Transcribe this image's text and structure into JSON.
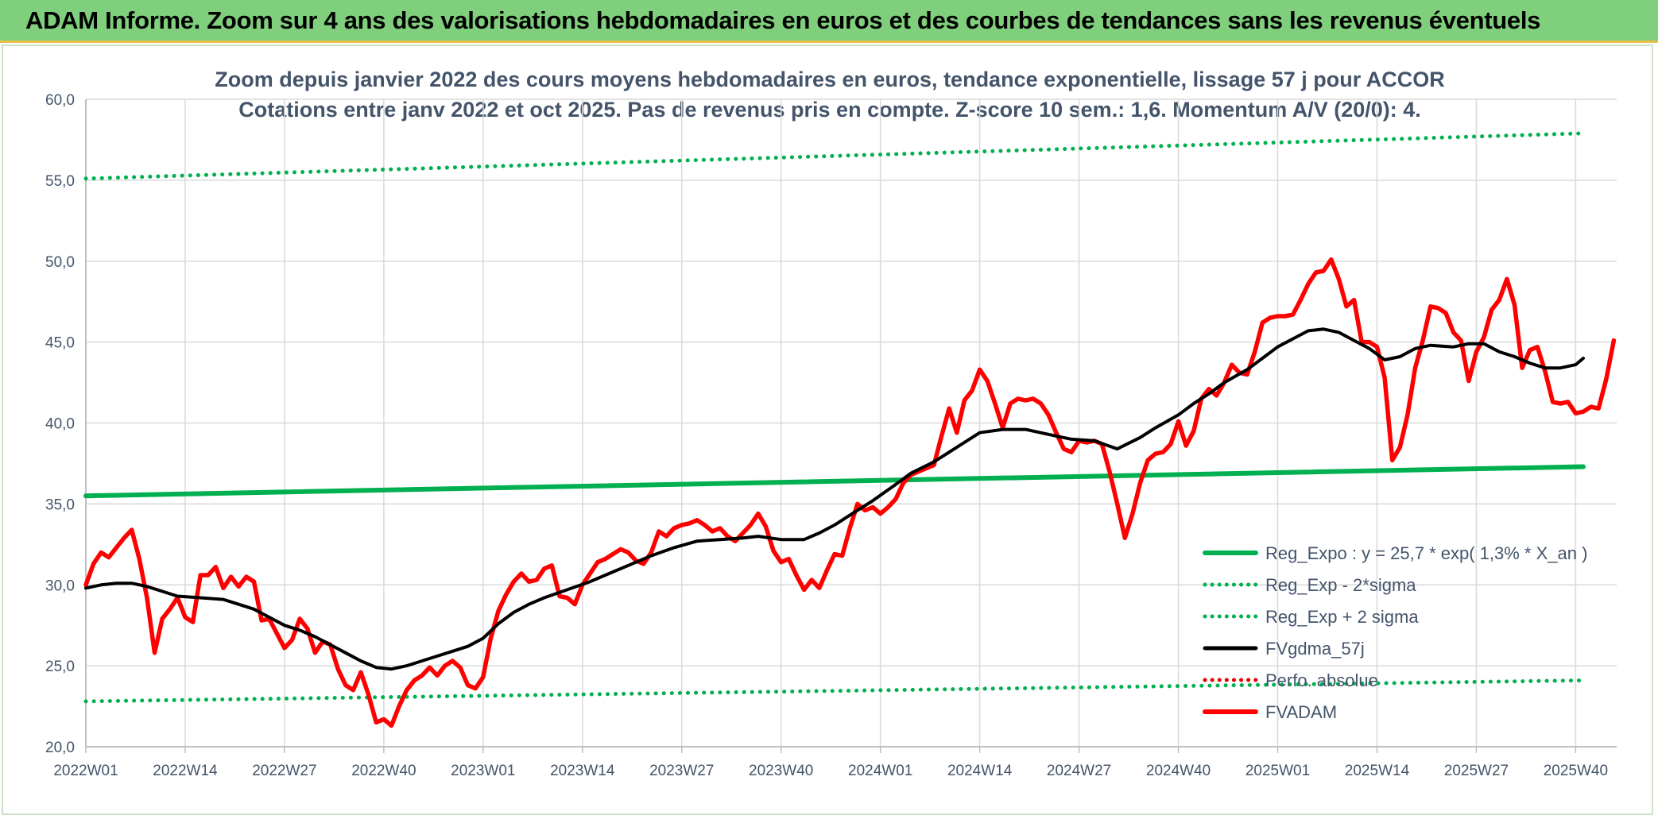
{
  "banner": {
    "title": "ADAM Informe. Zoom sur 4 ans des valorisations hebdomadaires en euros et des courbes de tendances sans les revenus éventuels"
  },
  "chart_data": {
    "type": "line",
    "title": "Zoom depuis janvier 2022 des cours moyens hebdomadaires en euros, tendance exponentielle, lissage 57 j pour ACCOR",
    "subtitle": "Cotations entre janv 2022 et oct 2025. Pas de revenus pris en compte. Z-score 10 sem.: 1,6. Momentum A/V (20/0): 4.",
    "ylim": [
      20,
      60
    ],
    "y_ticks": [
      "20,0",
      "25,0",
      "30,0",
      "35,0",
      "40,0",
      "45,0",
      "50,0",
      "55,0",
      "60,0"
    ],
    "x_range": [
      0,
      196
    ],
    "x_ticks": [
      {
        "label": "2022W01",
        "x": 0
      },
      {
        "label": "2022W14",
        "x": 13
      },
      {
        "label": "2022W27",
        "x": 26
      },
      {
        "label": "2022W40",
        "x": 39
      },
      {
        "label": "2023W01",
        "x": 52
      },
      {
        "label": "2023W14",
        "x": 65
      },
      {
        "label": "2023W27",
        "x": 78
      },
      {
        "label": "2023W40",
        "x": 91
      },
      {
        "label": "2024W01",
        "x": 104
      },
      {
        "label": "2024W14",
        "x": 117
      },
      {
        "label": "2024W27",
        "x": 130
      },
      {
        "label": "2024W40",
        "x": 143
      },
      {
        "label": "2025W01",
        "x": 156
      },
      {
        "label": "2025W14",
        "x": 169
      },
      {
        "label": "2025W27",
        "x": 182
      },
      {
        "label": "2025W40",
        "x": 195
      }
    ],
    "series": [
      {
        "name": "Reg_Expo : y = 25,7 * exp( 1,3% *  X_an )",
        "color": "#00b050",
        "style": "solid",
        "points": [
          [
            0,
            35.5
          ],
          [
            196,
            37.3
          ]
        ]
      },
      {
        "name": "Reg_Exp - 2*sigma",
        "color": "#00b050",
        "style": "dotted",
        "points": [
          [
            0,
            22.8
          ],
          [
            196,
            24.1
          ]
        ]
      },
      {
        "name": "Reg_Exp + 2 sigma",
        "color": "#00b050",
        "style": "dotted",
        "points": [
          [
            0,
            55.1
          ],
          [
            196,
            57.9
          ]
        ]
      },
      {
        "name": "FVgdma_57j",
        "color": "#000000",
        "style": "solid",
        "points": [
          [
            0,
            29.8
          ],
          [
            2,
            30
          ],
          [
            4,
            30.1
          ],
          [
            6,
            30.1
          ],
          [
            8,
            29.9
          ],
          [
            10,
            29.6
          ],
          [
            12,
            29.3
          ],
          [
            15,
            29.2
          ],
          [
            18,
            29.1
          ],
          [
            20,
            28.8
          ],
          [
            22,
            28.5
          ],
          [
            24,
            28
          ],
          [
            26,
            27.5
          ],
          [
            28,
            27.2
          ],
          [
            30,
            26.8
          ],
          [
            32,
            26.3
          ],
          [
            34,
            25.8
          ],
          [
            36,
            25.3
          ],
          [
            38,
            24.9
          ],
          [
            40,
            24.8
          ],
          [
            42,
            25
          ],
          [
            44,
            25.3
          ],
          [
            46,
            25.6
          ],
          [
            48,
            25.9
          ],
          [
            50,
            26.2
          ],
          [
            52,
            26.7
          ],
          [
            54,
            27.6
          ],
          [
            56,
            28.3
          ],
          [
            58,
            28.8
          ],
          [
            60,
            29.2
          ],
          [
            63,
            29.7
          ],
          [
            66,
            30.2
          ],
          [
            68,
            30.6
          ],
          [
            71,
            31.2
          ],
          [
            74,
            31.8
          ],
          [
            77,
            32.3
          ],
          [
            80,
            32.7
          ],
          [
            83,
            32.8
          ],
          [
            86,
            32.9
          ],
          [
            88,
            33
          ],
          [
            91,
            32.8
          ],
          [
            94,
            32.8
          ],
          [
            96,
            33.2
          ],
          [
            98,
            33.7
          ],
          [
            100,
            34.3
          ],
          [
            103,
            35.2
          ],
          [
            106,
            36.2
          ],
          [
            108,
            36.9
          ],
          [
            111,
            37.6
          ],
          [
            114,
            38.5
          ],
          [
            117,
            39.4
          ],
          [
            120,
            39.6
          ],
          [
            123,
            39.6
          ],
          [
            126,
            39.3
          ],
          [
            129,
            39
          ],
          [
            132,
            38.9
          ],
          [
            135,
            38.4
          ],
          [
            138,
            39.1
          ],
          [
            140,
            39.7
          ],
          [
            143,
            40.5
          ],
          [
            145,
            41.2
          ],
          [
            147,
            41.8
          ],
          [
            149,
            42.5
          ],
          [
            152,
            43.3
          ],
          [
            154,
            44
          ],
          [
            156,
            44.7
          ],
          [
            158,
            45.2
          ],
          [
            160,
            45.7
          ],
          [
            162,
            45.8
          ],
          [
            164,
            45.6
          ],
          [
            166,
            45.1
          ],
          [
            168,
            44.6
          ],
          [
            170,
            43.9
          ],
          [
            172,
            44.1
          ],
          [
            174,
            44.6
          ],
          [
            176,
            44.8
          ],
          [
            179,
            44.7
          ],
          [
            181,
            44.9
          ],
          [
            183,
            44.9
          ],
          [
            185,
            44.4
          ],
          [
            187,
            44.1
          ],
          [
            189,
            43.7
          ],
          [
            191,
            43.4
          ],
          [
            193,
            43.4
          ],
          [
            195,
            43.6
          ],
          [
            196,
            44
          ]
        ]
      },
      {
        "name": "Perfo. absolue",
        "color": "#e60000",
        "style": "dotted",
        "points": []
      },
      {
        "name": "FVADAM",
        "color": "#ff0000",
        "style": "solid",
        "points": [
          [
            0,
            30
          ],
          [
            1,
            31.3
          ],
          [
            2,
            32
          ],
          [
            3,
            31.7
          ],
          [
            4,
            32.3
          ],
          [
            5,
            32.9
          ],
          [
            6,
            33.4
          ],
          [
            7,
            31.6
          ],
          [
            8,
            29.2
          ],
          [
            9,
            25.8
          ],
          [
            10,
            27.9
          ],
          [
            11,
            28.5
          ],
          [
            12,
            29.2
          ],
          [
            13,
            28
          ],
          [
            14,
            27.7
          ],
          [
            15,
            30.6
          ],
          [
            16,
            30.6
          ],
          [
            17,
            31.1
          ],
          [
            18,
            29.8
          ],
          [
            19,
            30.5
          ],
          [
            20,
            29.9
          ],
          [
            21,
            30.5
          ],
          [
            22,
            30.2
          ],
          [
            23,
            27.8
          ],
          [
            24,
            27.9
          ],
          [
            25,
            27
          ],
          [
            26,
            26.1
          ],
          [
            27,
            26.6
          ],
          [
            28,
            27.9
          ],
          [
            29,
            27.3
          ],
          [
            30,
            25.8
          ],
          [
            31,
            26.5
          ],
          [
            32,
            26.3
          ],
          [
            33,
            24.8
          ],
          [
            34,
            23.8
          ],
          [
            35,
            23.5
          ],
          [
            36,
            24.6
          ],
          [
            37,
            23.2
          ],
          [
            38,
            21.5
          ],
          [
            39,
            21.7
          ],
          [
            40,
            21.3
          ],
          [
            41,
            22.5
          ],
          [
            42,
            23.5
          ],
          [
            43,
            24.1
          ],
          [
            44,
            24.4
          ],
          [
            45,
            24.9
          ],
          [
            46,
            24.4
          ],
          [
            47,
            25
          ],
          [
            48,
            25.3
          ],
          [
            49,
            24.9
          ],
          [
            50,
            23.8
          ],
          [
            51,
            23.6
          ],
          [
            52,
            24.3
          ],
          [
            53,
            26.7
          ],
          [
            54,
            28.4
          ],
          [
            55,
            29.4
          ],
          [
            56,
            30.2
          ],
          [
            57,
            30.7
          ],
          [
            58,
            30.2
          ],
          [
            59,
            30.3
          ],
          [
            60,
            31
          ],
          [
            61,
            31.2
          ],
          [
            62,
            29.3
          ],
          [
            63,
            29.2
          ],
          [
            64,
            28.8
          ],
          [
            65,
            30
          ],
          [
            66,
            30.7
          ],
          [
            67,
            31.4
          ],
          [
            68,
            31.6
          ],
          [
            69,
            31.9
          ],
          [
            70,
            32.2
          ],
          [
            71,
            32
          ],
          [
            72,
            31.5
          ],
          [
            73,
            31.3
          ],
          [
            74,
            32
          ],
          [
            75,
            33.3
          ],
          [
            76,
            33
          ],
          [
            77,
            33.5
          ],
          [
            78,
            33.7
          ],
          [
            79,
            33.8
          ],
          [
            80,
            34
          ],
          [
            81,
            33.7
          ],
          [
            82,
            33.3
          ],
          [
            83,
            33.5
          ],
          [
            84,
            33
          ],
          [
            85,
            32.7
          ],
          [
            86,
            33.2
          ],
          [
            87,
            33.7
          ],
          [
            88,
            34.4
          ],
          [
            89,
            33.6
          ],
          [
            90,
            32.1
          ],
          [
            91,
            31.4
          ],
          [
            92,
            31.6
          ],
          [
            93,
            30.6
          ],
          [
            94,
            29.7
          ],
          [
            95,
            30.3
          ],
          [
            96,
            29.8
          ],
          [
            97,
            30.9
          ],
          [
            98,
            31.9
          ],
          [
            99,
            31.8
          ],
          [
            100,
            33.5
          ],
          [
            101,
            35
          ],
          [
            102,
            34.6
          ],
          [
            103,
            34.8
          ],
          [
            104,
            34.4
          ],
          [
            105,
            34.8
          ],
          [
            106,
            35.3
          ],
          [
            107,
            36.3
          ],
          [
            108,
            36.8
          ],
          [
            109,
            37
          ],
          [
            110,
            37.2
          ],
          [
            111,
            37.4
          ],
          [
            112,
            39.2
          ],
          [
            113,
            40.9
          ],
          [
            114,
            39.4
          ],
          [
            115,
            41.4
          ],
          [
            116,
            42
          ],
          [
            117,
            43.3
          ],
          [
            118,
            42.6
          ],
          [
            119,
            41.2
          ],
          [
            120,
            39.7
          ],
          [
            121,
            41.2
          ],
          [
            122,
            41.5
          ],
          [
            123,
            41.4
          ],
          [
            124,
            41.5
          ],
          [
            125,
            41.2
          ],
          [
            126,
            40.5
          ],
          [
            127,
            39.4
          ],
          [
            128,
            38.4
          ],
          [
            129,
            38.2
          ],
          [
            130,
            38.9
          ],
          [
            131,
            38.8
          ],
          [
            132,
            38.9
          ],
          [
            133,
            38.7
          ],
          [
            134,
            37
          ],
          [
            135,
            35
          ],
          [
            136,
            32.9
          ],
          [
            137,
            34.4
          ],
          [
            138,
            36.3
          ],
          [
            139,
            37.7
          ],
          [
            140,
            38.1
          ],
          [
            141,
            38.2
          ],
          [
            142,
            38.7
          ],
          [
            143,
            40.1
          ],
          [
            144,
            38.6
          ],
          [
            145,
            39.5
          ],
          [
            146,
            41.5
          ],
          [
            147,
            42.1
          ],
          [
            148,
            41.7
          ],
          [
            149,
            42.5
          ],
          [
            150,
            43.6
          ],
          [
            151,
            43.1
          ],
          [
            152,
            43
          ],
          [
            153,
            44.4
          ],
          [
            154,
            46.2
          ],
          [
            155,
            46.5
          ],
          [
            156,
            46.6
          ],
          [
            157,
            46.6
          ],
          [
            158,
            46.7
          ],
          [
            159,
            47.6
          ],
          [
            160,
            48.6
          ],
          [
            161,
            49.3
          ],
          [
            162,
            49.4
          ],
          [
            163,
            50.1
          ],
          [
            164,
            48.9
          ],
          [
            165,
            47.2
          ],
          [
            166,
            47.6
          ],
          [
            167,
            45
          ],
          [
            168,
            45
          ],
          [
            169,
            44.7
          ],
          [
            170,
            42.8
          ],
          [
            171,
            37.7
          ],
          [
            172,
            38.5
          ],
          [
            173,
            40.5
          ],
          [
            174,
            43.4
          ],
          [
            175,
            45.1
          ],
          [
            176,
            47.2
          ],
          [
            177,
            47.1
          ],
          [
            178,
            46.8
          ],
          [
            179,
            45.6
          ],
          [
            180,
            45.1
          ],
          [
            181,
            42.6
          ],
          [
            182,
            44.4
          ],
          [
            183,
            45.3
          ],
          [
            184,
            47
          ],
          [
            185,
            47.6
          ],
          [
            186,
            48.9
          ],
          [
            187,
            47.3
          ],
          [
            188,
            43.4
          ],
          [
            189,
            44.5
          ],
          [
            190,
            44.7
          ],
          [
            191,
            43.2
          ],
          [
            192,
            41.3
          ],
          [
            193,
            41.2
          ],
          [
            194,
            41.3
          ],
          [
            195,
            40.6
          ],
          [
            196,
            40.7
          ],
          [
            197,
            41
          ],
          [
            198,
            40.9
          ],
          [
            199,
            42.7
          ],
          [
            200,
            45.1
          ]
        ]
      }
    ]
  }
}
